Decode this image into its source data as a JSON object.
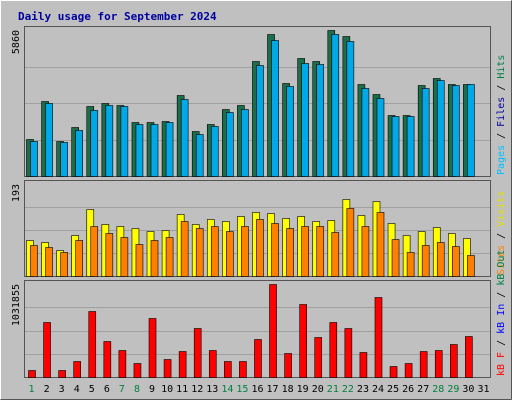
{
  "chart_data": {
    "type": "bar",
    "title": "Daily usage for September 2024",
    "categories": [
      "1",
      "2",
      "3",
      "4",
      "5",
      "6",
      "7",
      "8",
      "9",
      "10",
      "11",
      "12",
      "13",
      "14",
      "15",
      "16",
      "17",
      "18",
      "19",
      "20",
      "21",
      "22",
      "23",
      "24",
      "25",
      "26",
      "27",
      "28",
      "29",
      "30",
      "31"
    ],
    "weekend_day_indices": [
      0,
      6,
      7,
      13,
      14,
      20,
      21,
      27,
      28
    ],
    "colors": {
      "background": "#c0c0c0",
      "panel": "#c0c0c0",
      "frame": "#555555",
      "border": "#ffffff",
      "weekday": "#000000",
      "weekend": "#008040",
      "pages": "#00c0ff",
      "hits": "#1a6e4a",
      "files": "#0000ff",
      "visits": "#ffff00",
      "sites": "#ff8000",
      "kbin": "#008040",
      "kbout": "#0000ff",
      "kbf": "#ff0000"
    },
    "panels": [
      {
        "id": "hits-files-pages",
        "tick_label": "5860",
        "ylim": [
          0,
          5860
        ],
        "legend": [
          {
            "text": "Pages",
            "color": "#00c0ff"
          },
          {
            "text": "Files",
            "color": "#0000a0"
          },
          {
            "text": "Hits",
            "color": "#008040"
          }
        ],
        "series": [
          {
            "name": "Hits",
            "color": "#1a6e4a",
            "values": [
              1500,
              3000,
              1400,
              1950,
              2800,
              2950,
              2850,
              2150,
              2150,
              2200,
              3250,
              1800,
              2100,
              2700,
              2850,
              4600,
              5700,
              3750,
              4750,
              4600,
              5860,
              5600,
              3700,
              3300,
              2450,
              2450,
              3650,
              3950,
              3700,
              3700,
              0
            ]
          },
          {
            "name": "Files",
            "color": "#00a8e8",
            "values": [
              1400,
              2950,
              1350,
              1850,
              2650,
              2850,
              2800,
              2100,
              2100,
              2150,
              3100,
              1700,
              2000,
              2550,
              2700,
              4450,
              5450,
              3600,
              4550,
              4500,
              5700,
              5400,
              3550,
              3150,
              2400,
              2400,
              3550,
              3850,
              3650,
              3700,
              0
            ]
          }
        ]
      },
      {
        "id": "visits-sites",
        "tick_label": "193",
        "ylim": [
          0,
          193
        ],
        "legend": [
          {
            "text": "Sites",
            "color": "#ff8000"
          },
          {
            "text": "Visits",
            "color": "#e0e000"
          }
        ],
        "series": [
          {
            "name": "Visits",
            "color": "#ffff00",
            "values": [
              75,
              72,
              55,
              85,
              140,
              110,
              105,
              100,
              95,
              97,
              130,
              110,
              120,
              115,
              125,
              135,
              132,
              122,
              125,
              115,
              117,
              162,
              128,
              158,
              112,
              87,
              95,
              102,
              90,
              80,
              0
            ]
          },
          {
            "name": "Sites",
            "color": "#ff8000",
            "values": [
              65,
              60,
              50,
              75,
              105,
              90,
              82,
              68,
              75,
              82,
              115,
              100,
              105,
              95,
              105,
              120,
              112,
              100,
              105,
              105,
              92,
              142,
              105,
              135,
              77,
              50,
              65,
              72,
              62,
              45,
              0
            ]
          }
        ]
      },
      {
        "id": "kbf",
        "tick_label": "1031855",
        "ylim": [
          0,
          1031855
        ],
        "legend": [
          {
            "text": "kB F",
            "color": "#ff0000"
          },
          {
            "text": "kB In",
            "color": "#0000ff"
          },
          {
            "text": "kB Out",
            "color": "#008040"
          }
        ],
        "series": [
          {
            "name": "kB F",
            "color": "#ff0000",
            "values": [
              75000,
              615000,
              80000,
              175000,
              735000,
              395000,
              305000,
              150000,
              655000,
              195000,
              285000,
              545000,
              305000,
              180000,
              180000,
              425000,
              1031855,
              265000,
              815000,
              440000,
              605000,
              545000,
              280000,
              885000,
              120000,
              155000,
              285000,
              305000,
              365000,
              460000,
              0
            ]
          }
        ]
      }
    ]
  }
}
